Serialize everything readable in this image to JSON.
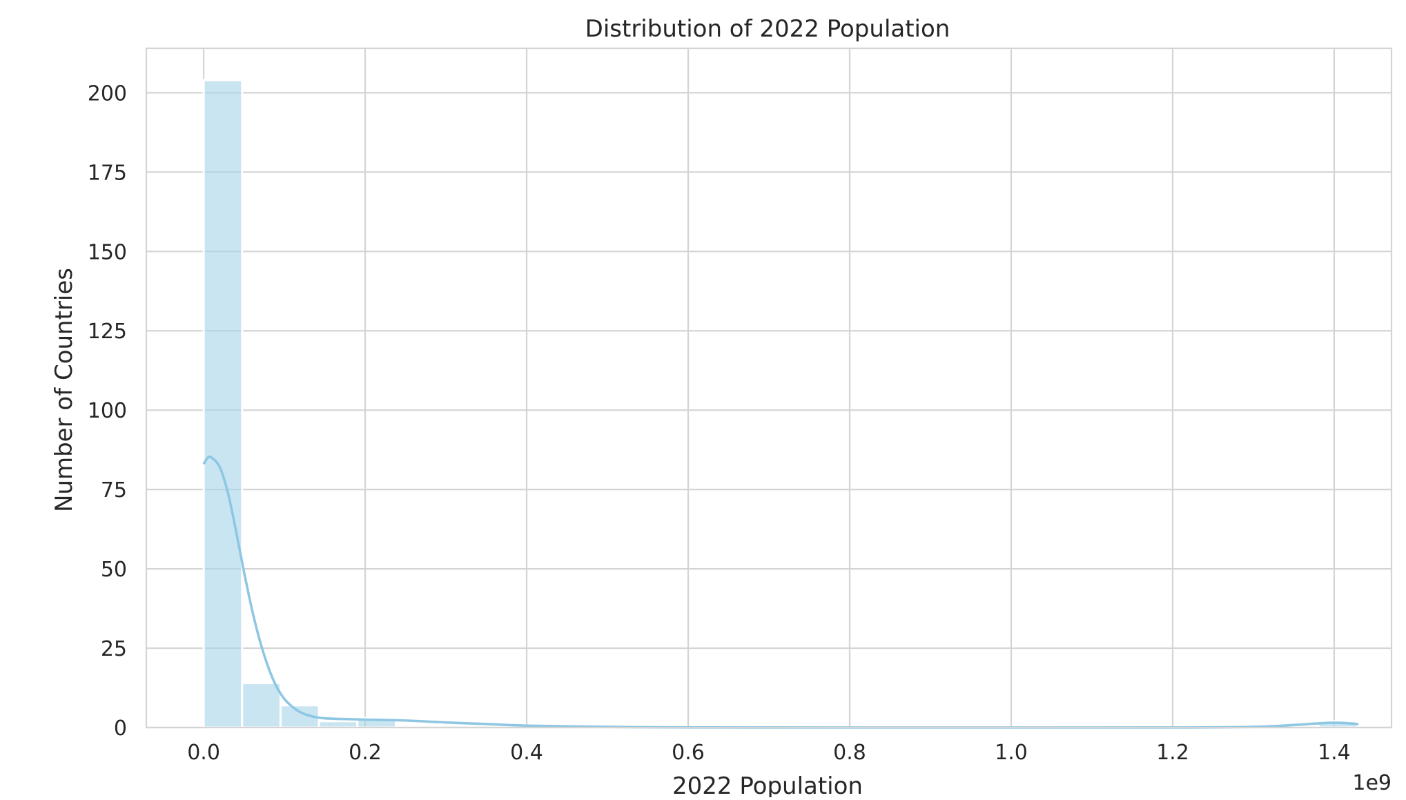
{
  "chart_data": {
    "type": "bar",
    "subtype": "histogram",
    "title": "Distribution of 2022 Population",
    "xlabel": "2022 Population",
    "ylabel": "Number of Countries",
    "x_offset_label": "1e9",
    "xlim": [
      -0.071,
      1.471
    ],
    "ylim": [
      0,
      214
    ],
    "x_ticks": [
      0.0,
      0.2,
      0.4,
      0.6,
      0.8,
      1.0,
      1.2,
      1.4
    ],
    "x_tick_labels": [
      "0.0",
      "0.2",
      "0.4",
      "0.6",
      "0.8",
      "1.0",
      "1.2",
      "1.4"
    ],
    "y_ticks": [
      0,
      25,
      50,
      75,
      100,
      125,
      150,
      175,
      200
    ],
    "y_tick_labels": [
      "0",
      "25",
      "50",
      "75",
      "100",
      "125",
      "150",
      "175",
      "200"
    ],
    "grid": true,
    "color": "#a9d5ea",
    "line_color": "#8ec7e3",
    "bins": {
      "start": 0.0,
      "width": 0.0476,
      "counts": [
        204,
        14,
        7,
        2,
        3,
        0,
        0,
        0,
        0,
        0,
        0,
        0,
        0,
        0,
        0,
        0,
        0,
        0,
        0,
        0,
        0,
        0,
        0,
        0,
        0,
        0,
        0,
        0,
        0,
        2
      ]
    },
    "kde": {
      "x": [
        0.0,
        0.005,
        0.01,
        0.02,
        0.03,
        0.04,
        0.05,
        0.06,
        0.07,
        0.08,
        0.09,
        0.1,
        0.11,
        0.12,
        0.13,
        0.14,
        0.15,
        0.17,
        0.2,
        0.25,
        0.3,
        0.35,
        0.4,
        0.5,
        0.6,
        0.8,
        1.0,
        1.2,
        1.3,
        1.35,
        1.38,
        1.4,
        1.42,
        1.43
      ],
      "y": [
        83,
        85,
        85,
        82,
        74,
        62,
        49,
        37,
        27,
        19,
        13,
        9,
        6.5,
        4.8,
        3.8,
        3.2,
        2.9,
        2.7,
        2.5,
        2.2,
        1.6,
        1.1,
        0.6,
        0.2,
        0.05,
        0.0,
        0.0,
        0.02,
        0.2,
        0.8,
        1.3,
        1.5,
        1.3,
        1.0
      ]
    }
  }
}
